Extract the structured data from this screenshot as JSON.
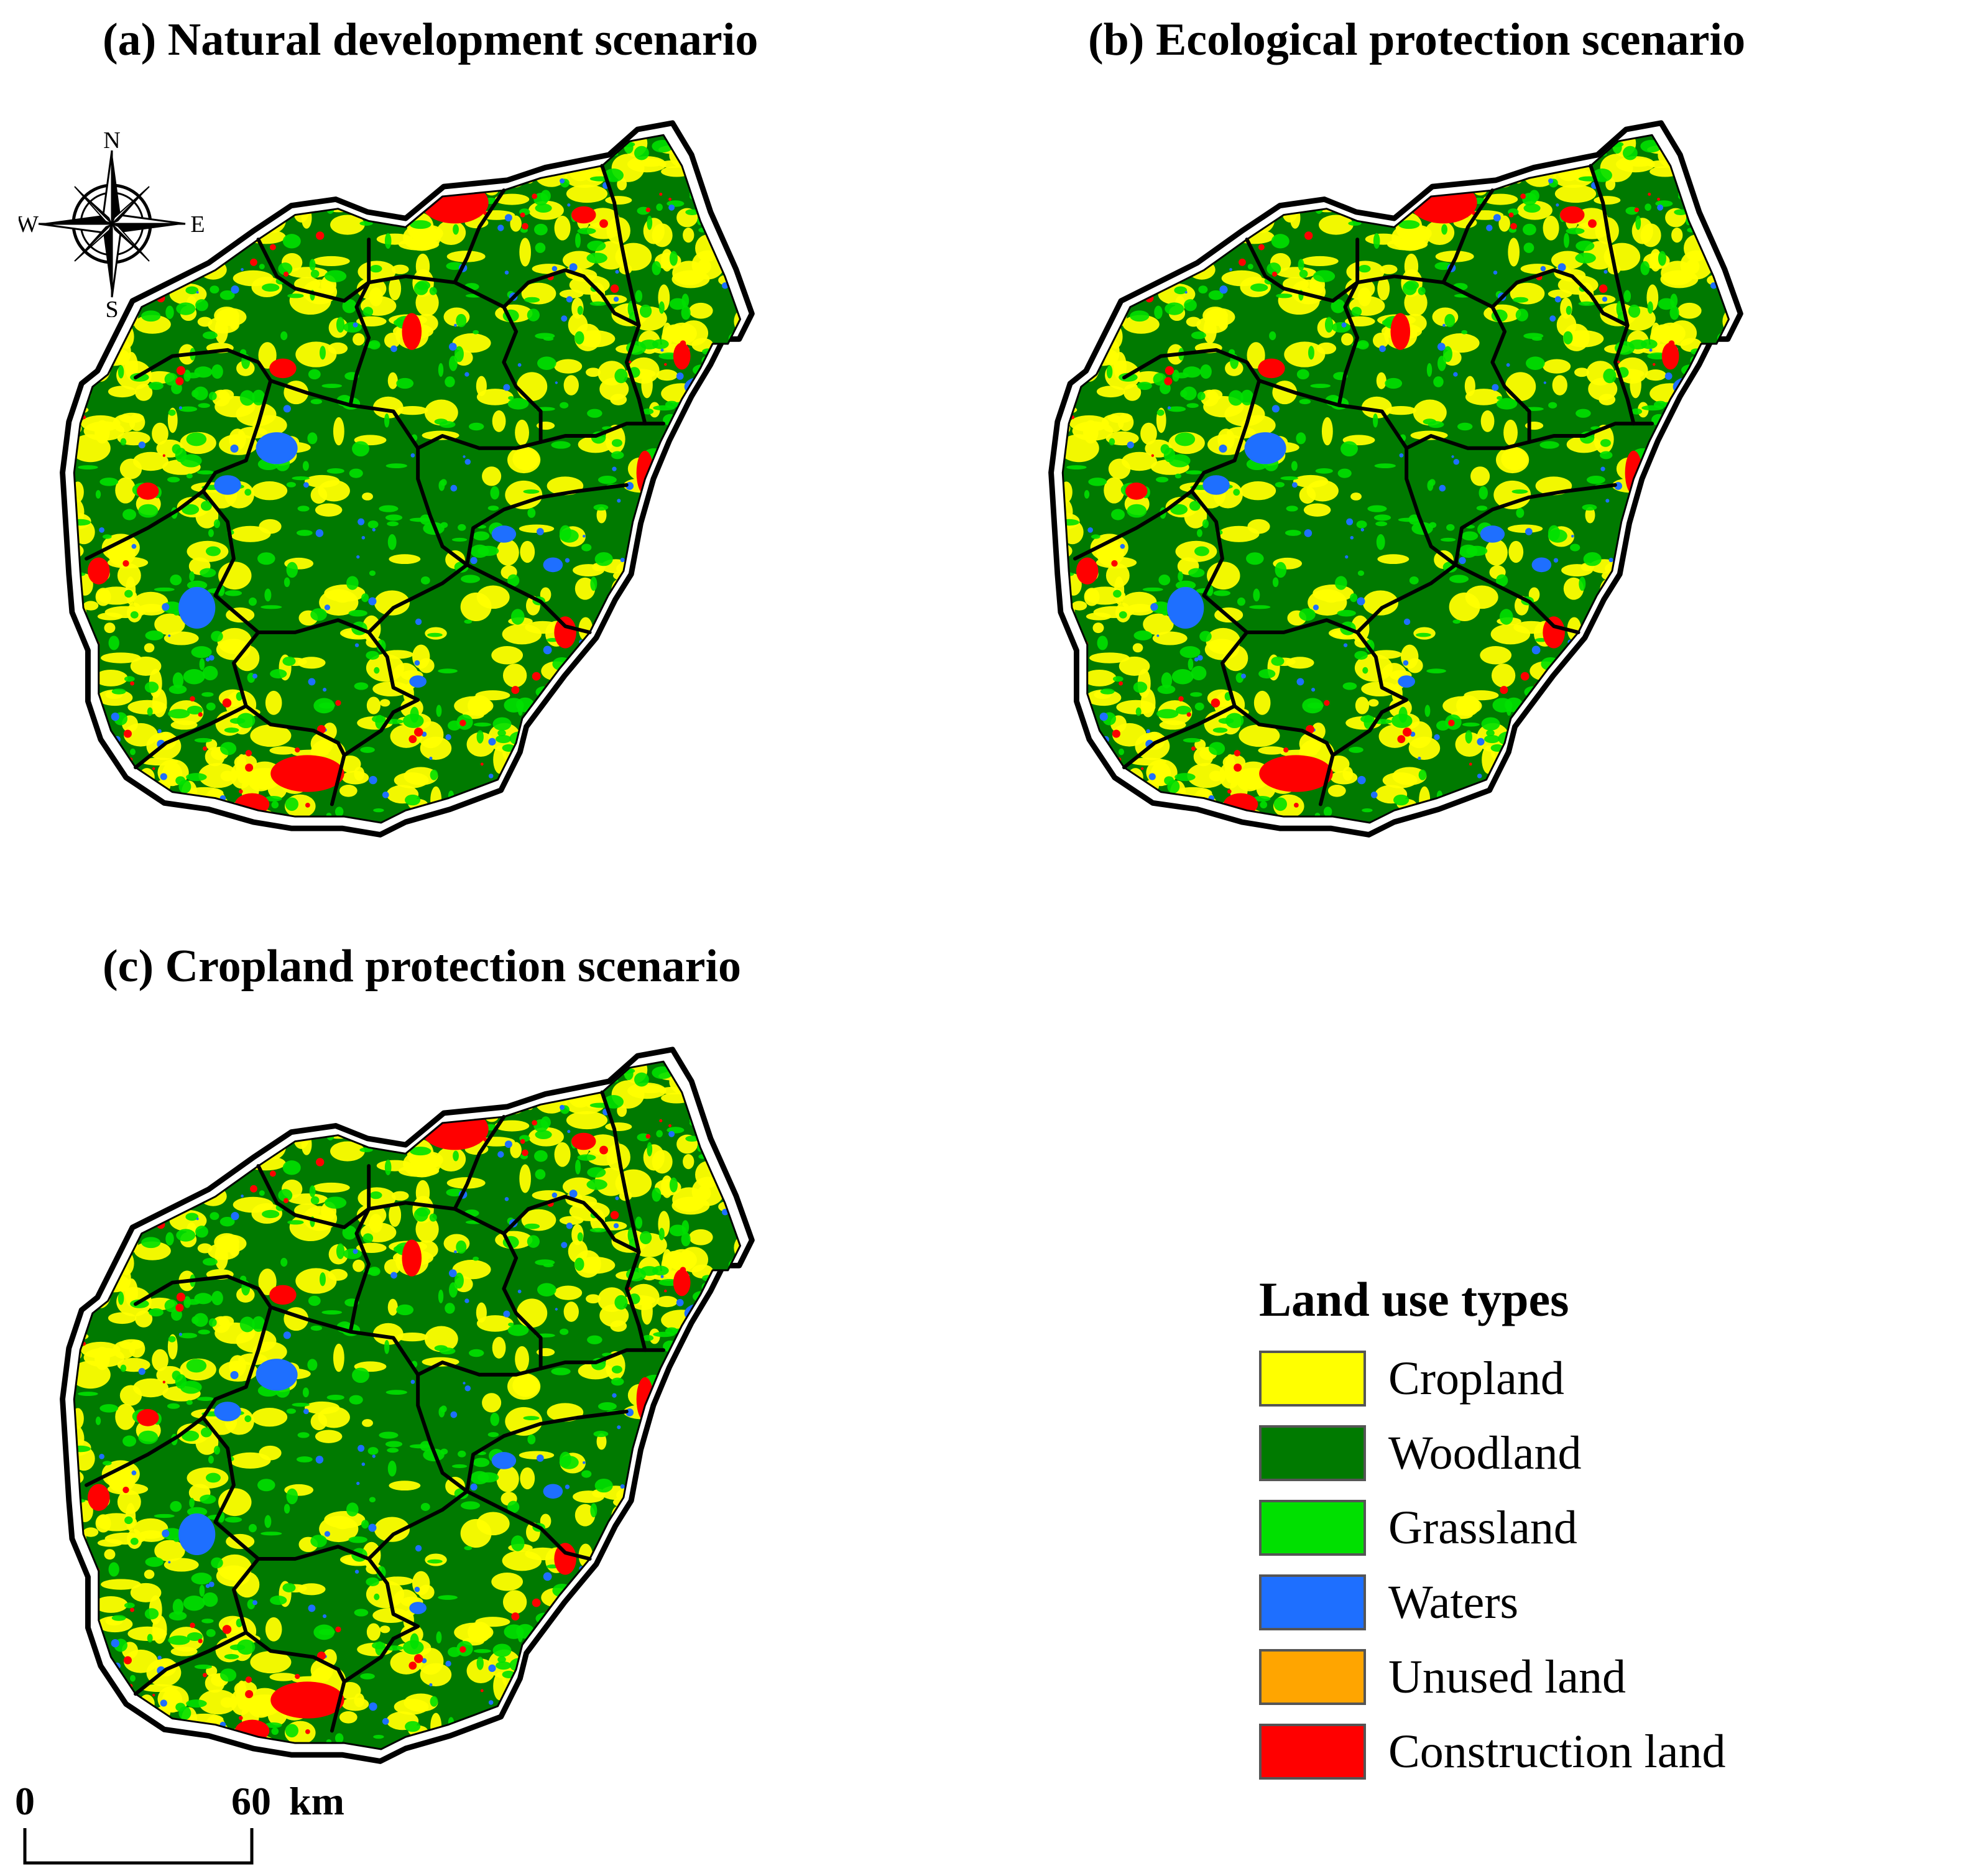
{
  "panels": [
    {
      "title": "(a) Natural development scenario"
    },
    {
      "title": "(b) Ecological protection scenario"
    },
    {
      "title": "(c) Cropland protection scenario"
    }
  ],
  "compass": {
    "n": "N",
    "s": "S",
    "e": "E",
    "w": "W"
  },
  "legend": {
    "title": "Land use types",
    "items": [
      {
        "label": "Cropland",
        "color": "#ffff00"
      },
      {
        "label": "Woodland",
        "color": "#007a00"
      },
      {
        "label": "Grassland",
        "color": "#00e000"
      },
      {
        "label": "Waters",
        "color": "#1e6fff"
      },
      {
        "label": "Unused land",
        "color": "#ffa500"
      },
      {
        "label": "Construction land",
        "color": "#ff0000"
      }
    ]
  },
  "scalebar": {
    "start": "0",
    "end": "60",
    "unit": "km"
  }
}
